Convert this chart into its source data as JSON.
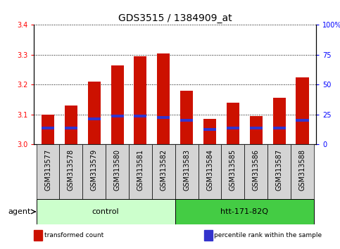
{
  "title": "GDS3515 / 1384909_at",
  "samples": [
    "GSM313577",
    "GSM313578",
    "GSM313579",
    "GSM313580",
    "GSM313581",
    "GSM313582",
    "GSM313583",
    "GSM313584",
    "GSM313585",
    "GSM313586",
    "GSM313587",
    "GSM313588"
  ],
  "red_values": [
    3.1,
    3.13,
    3.21,
    3.265,
    3.295,
    3.305,
    3.18,
    3.085,
    3.14,
    3.095,
    3.155,
    3.225
  ],
  "blue_values": [
    3.055,
    3.055,
    3.085,
    3.095,
    3.095,
    3.09,
    3.08,
    3.05,
    3.055,
    3.055,
    3.055,
    3.08
  ],
  "ymin": 3.0,
  "ymax": 3.4,
  "yticks": [
    3.0,
    3.1,
    3.2,
    3.3,
    3.4
  ],
  "right_yticks": [
    0,
    25,
    50,
    75,
    100
  ],
  "bar_color": "#cc1100",
  "blue_color": "#3333cc",
  "groups": [
    {
      "label": "control",
      "start": 0,
      "end": 6,
      "color": "#ccffcc"
    },
    {
      "label": "htt-171-82Q",
      "start": 6,
      "end": 12,
      "color": "#44cc44"
    }
  ],
  "agent_label": "agent",
  "legend": [
    {
      "color": "#cc1100",
      "label": "transformed count"
    },
    {
      "color": "#3333cc",
      "label": "percentile rank within the sample"
    }
  ],
  "bar_width": 0.55,
  "title_fontsize": 10,
  "tick_fontsize": 7,
  "label_fontsize": 8,
  "group_label_fontsize": 8
}
